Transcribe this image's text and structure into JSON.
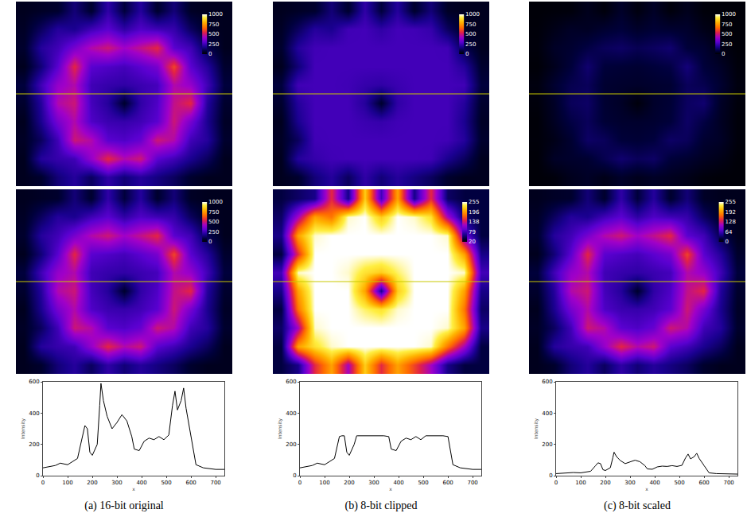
{
  "chart_data": [
    {
      "caption": "(a) 16-bit original",
      "images": [
        {
          "type": "heatmap",
          "zlim": [
            0,
            1000
          ],
          "zticks": [
            0,
            250,
            500,
            750,
            1000
          ],
          "tick_labels": false
        },
        {
          "type": "heatmap",
          "zlim": [
            0,
            1000
          ],
          "zticks": [
            0,
            250,
            500,
            750,
            1000
          ],
          "tick_labels": false
        }
      ],
      "image_values": [
        [
          40,
          50,
          60,
          150,
          60,
          220,
          80,
          200,
          60,
          150,
          50,
          40,
          40
        ],
        [
          50,
          120,
          200,
          180,
          250,
          300,
          220,
          280,
          250,
          230,
          120,
          50,
          40
        ],
        [
          60,
          200,
          250,
          350,
          450,
          500,
          420,
          480,
          550,
          300,
          250,
          100,
          40
        ],
        [
          40,
          150,
          300,
          550,
          300,
          280,
          260,
          300,
          350,
          600,
          300,
          200,
          60
        ],
        [
          80,
          250,
          400,
          450,
          250,
          230,
          220,
          240,
          260,
          450,
          400,
          250,
          80
        ],
        [
          60,
          200,
          450,
          500,
          260,
          200,
          60,
          220,
          280,
          480,
          550,
          200,
          60
        ],
        [
          40,
          180,
          350,
          450,
          280,
          240,
          230,
          250,
          300,
          500,
          350,
          180,
          50
        ],
        [
          50,
          120,
          250,
          500,
          450,
          300,
          280,
          320,
          500,
          450,
          250,
          200,
          60
        ],
        [
          40,
          200,
          230,
          250,
          400,
          550,
          450,
          500,
          300,
          250,
          180,
          120,
          40
        ],
        [
          40,
          60,
          150,
          200,
          120,
          220,
          150,
          200,
          160,
          120,
          60,
          40,
          40
        ]
      ],
      "profile": {
        "type": "line",
        "xlabel": "x",
        "ylabel": "Intensity",
        "color": "#000000",
        "grid": false,
        "xlim": [
          0,
          735
        ],
        "xticks": [
          0,
          100,
          200,
          300,
          400,
          500,
          600,
          700
        ],
        "ylim": [
          0,
          600
        ],
        "yticks": [
          0,
          200,
          400,
          600
        ],
        "x": [
          0,
          50,
          70,
          100,
          140,
          160,
          170,
          180,
          190,
          200,
          220,
          230,
          235,
          245,
          260,
          280,
          300,
          320,
          340,
          360,
          370,
          390,
          410,
          430,
          450,
          470,
          490,
          510,
          525,
          535,
          545,
          560,
          570,
          580,
          600,
          610,
          620,
          650,
          700,
          735
        ],
        "values": [
          50,
          65,
          80,
          70,
          110,
          250,
          320,
          300,
          150,
          130,
          200,
          450,
          590,
          480,
          380,
          300,
          340,
          390,
          350,
          250,
          170,
          160,
          220,
          240,
          230,
          250,
          230,
          260,
          450,
          540,
          420,
          480,
          560,
          430,
          250,
          150,
          70,
          50,
          40,
          40
        ]
      }
    },
    {
      "caption": "(b) 8-bit clipped",
      "images": [
        {
          "type": "heatmap",
          "zlim": [
            0,
            1000
          ],
          "zticks": [
            0,
            250,
            500,
            750,
            1000
          ],
          "tick_labels": false
        },
        {
          "type": "heatmap",
          "zlim": [
            20,
            255
          ],
          "zticks": [
            20,
            79,
            138,
            196,
            255
          ],
          "tick_labels": false
        }
      ],
      "image_values": [
        [
          40,
          50,
          60,
          150,
          60,
          220,
          80,
          200,
          60,
          150,
          50,
          40,
          40
        ],
        [
          50,
          120,
          200,
          180,
          250,
          255,
          220,
          255,
          250,
          230,
          120,
          50,
          40
        ],
        [
          60,
          200,
          250,
          255,
          255,
          255,
          255,
          255,
          255,
          255,
          250,
          100,
          40
        ],
        [
          40,
          150,
          255,
          255,
          255,
          255,
          255,
          255,
          255,
          255,
          255,
          200,
          60
        ],
        [
          80,
          250,
          255,
          255,
          250,
          230,
          220,
          240,
          255,
          255,
          255,
          250,
          80
        ],
        [
          60,
          200,
          255,
          255,
          255,
          200,
          60,
          220,
          255,
          255,
          255,
          200,
          60
        ],
        [
          40,
          180,
          255,
          255,
          255,
          240,
          230,
          250,
          255,
          255,
          255,
          180,
          50
        ],
        [
          50,
          120,
          250,
          255,
          255,
          255,
          255,
          255,
          255,
          255,
          250,
          200,
          60
        ],
        [
          40,
          200,
          230,
          250,
          255,
          255,
          255,
          255,
          255,
          250,
          180,
          120,
          40
        ],
        [
          40,
          60,
          150,
          200,
          120,
          220,
          150,
          200,
          160,
          120,
          60,
          40,
          40
        ]
      ],
      "profile": {
        "type": "line",
        "xlabel": "x",
        "ylabel": "Intensity",
        "color": "#000000",
        "grid": false,
        "xlim": [
          0,
          735
        ],
        "xticks": [
          0,
          100,
          200,
          300,
          400,
          500,
          600,
          700
        ],
        "ylim": [
          0,
          600
        ],
        "yticks": [
          0,
          200,
          400,
          600
        ],
        "x": [
          0,
          50,
          70,
          100,
          140,
          160,
          170,
          180,
          190,
          200,
          220,
          230,
          235,
          245,
          260,
          280,
          300,
          320,
          340,
          360,
          370,
          390,
          410,
          430,
          450,
          470,
          490,
          510,
          525,
          535,
          545,
          560,
          570,
          580,
          600,
          610,
          620,
          650,
          700,
          735
        ],
        "values": [
          50,
          65,
          80,
          70,
          110,
          250,
          255,
          255,
          150,
          130,
          200,
          255,
          255,
          255,
          255,
          255,
          255,
          255,
          255,
          250,
          170,
          160,
          220,
          240,
          230,
          250,
          230,
          255,
          255,
          255,
          255,
          255,
          255,
          255,
          250,
          150,
          70,
          50,
          40,
          40
        ]
      }
    },
    {
      "caption": "(c) 8-bit scaled",
      "images": [
        {
          "type": "heatmap",
          "zlim": [
            0,
            1000
          ],
          "zticks": [
            0,
            250,
            500,
            750,
            1000
          ],
          "tick_labels": false
        },
        {
          "type": "heatmap",
          "zlim": [
            0,
            255
          ],
          "zticks": [
            0,
            64,
            128,
            192,
            255
          ],
          "tick_labels": false
        }
      ],
      "image_values": [
        [
          10,
          13,
          15,
          38,
          15,
          56,
          20,
          51,
          15,
          38,
          13,
          10,
          10
        ],
        [
          13,
          31,
          51,
          46,
          64,
          77,
          56,
          71,
          64,
          59,
          31,
          13,
          10
        ],
        [
          15,
          51,
          64,
          89,
          115,
          128,
          107,
          122,
          140,
          77,
          64,
          26,
          10
        ],
        [
          10,
          38,
          77,
          140,
          77,
          71,
          66,
          77,
          89,
          153,
          77,
          51,
          15
        ],
        [
          20,
          64,
          102,
          115,
          64,
          59,
          56,
          61,
          66,
          115,
          102,
          64,
          20
        ],
        [
          15,
          51,
          115,
          128,
          66,
          51,
          15,
          56,
          71,
          122,
          140,
          51,
          15
        ],
        [
          10,
          46,
          89,
          115,
          71,
          61,
          59,
          64,
          77,
          128,
          89,
          46,
          13
        ],
        [
          13,
          31,
          64,
          128,
          115,
          77,
          71,
          82,
          128,
          115,
          64,
          51,
          15
        ],
        [
          10,
          51,
          59,
          64,
          102,
          140,
          115,
          128,
          77,
          64,
          46,
          31,
          10
        ],
        [
          10,
          15,
          38,
          51,
          31,
          56,
          38,
          51,
          41,
          31,
          15,
          10,
          10
        ]
      ],
      "profile": {
        "type": "line",
        "xlabel": "x",
        "ylabel": "Intensity",
        "color": "#000000",
        "grid": false,
        "xlim": [
          0,
          735
        ],
        "xticks": [
          0,
          100,
          200,
          300,
          400,
          500,
          600,
          700
        ],
        "ylim": [
          0,
          600
        ],
        "yticks": [
          0,
          200,
          400,
          600
        ],
        "x": [
          0,
          50,
          70,
          100,
          140,
          160,
          170,
          180,
          190,
          200,
          220,
          230,
          235,
          245,
          260,
          280,
          300,
          320,
          340,
          360,
          370,
          390,
          410,
          430,
          450,
          470,
          490,
          510,
          525,
          535,
          545,
          560,
          570,
          580,
          600,
          610,
          620,
          650,
          700,
          735
        ],
        "values": [
          13,
          17,
          20,
          18,
          28,
          64,
          82,
          77,
          38,
          33,
          51,
          115,
          150,
          122,
          97,
          77,
          87,
          99,
          89,
          64,
          43,
          41,
          56,
          61,
          59,
          64,
          59,
          66,
          115,
          138,
          107,
          122,
          143,
          110,
          64,
          38,
          18,
          13,
          10,
          10
        ]
      }
    }
  ]
}
